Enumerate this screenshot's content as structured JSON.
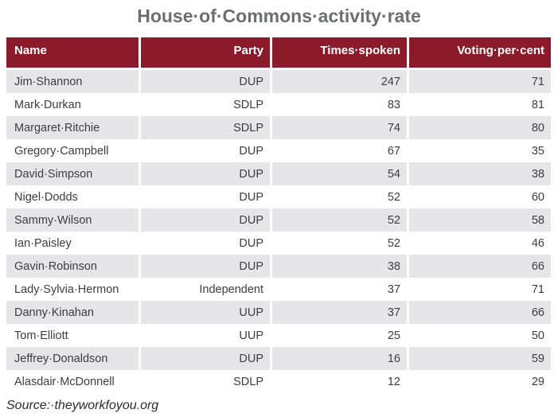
{
  "colors": {
    "header-bg": "#8B1A2B",
    "header-text": "#FFFFFF",
    "row-bg": "#FFFFFF",
    "row-alt-bg": "#E6E6E8",
    "title-text": "#6D6E71",
    "cell-text": "#3D3D3D",
    "source-text": "#2B2B2B"
  },
  "chart_data": {
    "type": "table",
    "title": "House of Commons activity rate",
    "source": "Source: theyworkfoyou.org",
    "columns": [
      "Name",
      "Party",
      "Times spoken",
      "Voting per cent"
    ],
    "rows": [
      {
        "name": "Jim Shannon",
        "party": "DUP",
        "times_spoken": 247,
        "voting_per_cent": 71
      },
      {
        "name": "Mark Durkan",
        "party": "SDLP",
        "times_spoken": 83,
        "voting_per_cent": 81
      },
      {
        "name": "Margaret Ritchie",
        "party": "SDLP",
        "times_spoken": 74,
        "voting_per_cent": 80
      },
      {
        "name": "Gregory Campbell",
        "party": "DUP",
        "times_spoken": 67,
        "voting_per_cent": 35
      },
      {
        "name": "David Simpson",
        "party": "DUP",
        "times_spoken": 54,
        "voting_per_cent": 38
      },
      {
        "name": "Nigel Dodds",
        "party": "DUP",
        "times_spoken": 52,
        "voting_per_cent": 60
      },
      {
        "name": "Sammy Wilson",
        "party": "DUP",
        "times_spoken": 52,
        "voting_per_cent": 58
      },
      {
        "name": "Ian Paisley",
        "party": "DUP",
        "times_spoken": 52,
        "voting_per_cent": 46
      },
      {
        "name": "Gavin Robinson",
        "party": "DUP",
        "times_spoken": 38,
        "voting_per_cent": 66
      },
      {
        "name": "Lady Sylvia Hermon",
        "party": "Independent",
        "times_spoken": 37,
        "voting_per_cent": 71
      },
      {
        "name": "Danny Kinahan",
        "party": "UUP",
        "times_spoken": 37,
        "voting_per_cent": 66
      },
      {
        "name": "Tom Elliott",
        "party": "UUP",
        "times_spoken": 25,
        "voting_per_cent": 50
      },
      {
        "name": "Jeffrey Donaldson",
        "party": "DUP",
        "times_spoken": 16,
        "voting_per_cent": 59
      },
      {
        "name": "Alasdair McDonnell",
        "party": "SDLP",
        "times_spoken": 12,
        "voting_per_cent": 29
      }
    ]
  }
}
